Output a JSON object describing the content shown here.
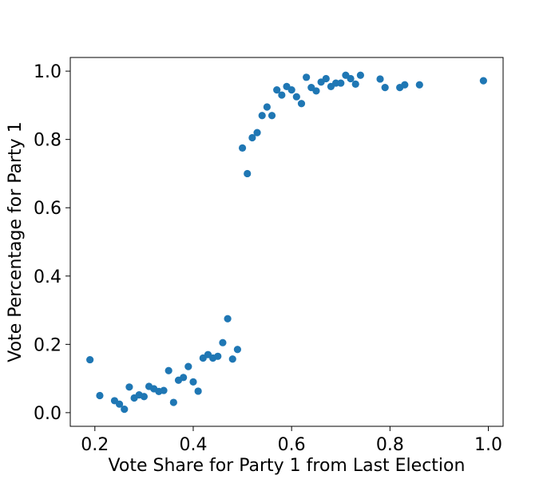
{
  "chart_data": {
    "type": "scatter",
    "xlabel": "Vote Share for Party 1 from Last Election",
    "ylabel": "Vote Percentage for Party 1",
    "xlim": [
      0.15,
      1.03
    ],
    "ylim": [
      -0.04,
      1.04
    ],
    "xticks": [
      0.2,
      0.4,
      0.6,
      0.8,
      1.0
    ],
    "xtick_labels": [
      "0.2",
      "0.4",
      "0.6",
      "0.8",
      "1.0"
    ],
    "yticks": [
      0.0,
      0.2,
      0.4,
      0.6,
      0.8,
      1.0
    ],
    "ytick_labels": [
      "0.0",
      "0.2",
      "0.4",
      "0.6",
      "0.8",
      "1.0"
    ],
    "grid": false,
    "marker_color": "#1f77b4",
    "points": [
      [
        0.19,
        0.155
      ],
      [
        0.21,
        0.05
      ],
      [
        0.24,
        0.035
      ],
      [
        0.25,
        0.025
      ],
      [
        0.26,
        0.01
      ],
      [
        0.27,
        0.075
      ],
      [
        0.28,
        0.043
      ],
      [
        0.29,
        0.052
      ],
      [
        0.3,
        0.047
      ],
      [
        0.31,
        0.077
      ],
      [
        0.32,
        0.07
      ],
      [
        0.33,
        0.062
      ],
      [
        0.34,
        0.065
      ],
      [
        0.35,
        0.123
      ],
      [
        0.36,
        0.03
      ],
      [
        0.37,
        0.095
      ],
      [
        0.38,
        0.103
      ],
      [
        0.39,
        0.135
      ],
      [
        0.4,
        0.09
      ],
      [
        0.41,
        0.063
      ],
      [
        0.42,
        0.16
      ],
      [
        0.43,
        0.17
      ],
      [
        0.44,
        0.16
      ],
      [
        0.45,
        0.165
      ],
      [
        0.46,
        0.205
      ],
      [
        0.47,
        0.275
      ],
      [
        0.48,
        0.157
      ],
      [
        0.49,
        0.185
      ],
      [
        0.5,
        0.775
      ],
      [
        0.51,
        0.7
      ],
      [
        0.52,
        0.805
      ],
      [
        0.53,
        0.82
      ],
      [
        0.54,
        0.87
      ],
      [
        0.55,
        0.895
      ],
      [
        0.56,
        0.87
      ],
      [
        0.57,
        0.945
      ],
      [
        0.58,
        0.93
      ],
      [
        0.59,
        0.955
      ],
      [
        0.6,
        0.945
      ],
      [
        0.61,
        0.925
      ],
      [
        0.62,
        0.905
      ],
      [
        0.63,
        0.982
      ],
      [
        0.64,
        0.952
      ],
      [
        0.65,
        0.942
      ],
      [
        0.66,
        0.968
      ],
      [
        0.67,
        0.978
      ],
      [
        0.68,
        0.955
      ],
      [
        0.69,
        0.965
      ],
      [
        0.7,
        0.965
      ],
      [
        0.71,
        0.988
      ],
      [
        0.72,
        0.978
      ],
      [
        0.73,
        0.962
      ],
      [
        0.74,
        0.988
      ],
      [
        0.78,
        0.977
      ],
      [
        0.79,
        0.952
      ],
      [
        0.82,
        0.952
      ],
      [
        0.83,
        0.96
      ],
      [
        0.86,
        0.96
      ],
      [
        0.99,
        0.972
      ]
    ]
  }
}
